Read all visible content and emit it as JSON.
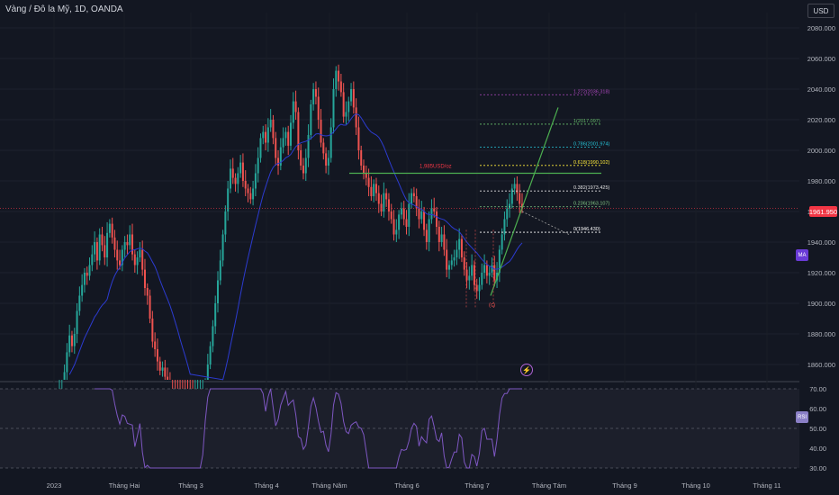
{
  "header": {
    "symbol_title": "Vàng / Đô la Mỹ, 1D, OANDA",
    "currency": "USD"
  },
  "badges": {
    "last_price": "1961.950",
    "ma": "MA",
    "rsi": "RSI"
  },
  "icons": {
    "flash": "lightning-icon"
  },
  "colors": {
    "background": "#131722",
    "up": "#26a69a",
    "down": "#ef5350",
    "ma_line": "#2c3bd0",
    "rsi_line": "#7e57c2",
    "price_line": "#f23645",
    "trend_green": "#4caf50"
  },
  "chart_data": [
    {
      "type": "candlestick",
      "title": "Vàng / Đô la Mỹ, 1D, OANDA",
      "ylim": [
        1850,
        2090
      ],
      "y_ticks": [
        "2080.000",
        "2060.000",
        "2040.000",
        "2020.000",
        "2000.000",
        "1980.000",
        "1960.000",
        "1940.000",
        "1920.000",
        "1900.000",
        "1880.000",
        "1860.000"
      ],
      "x_ticks": [
        "2023",
        "Tháng Hai",
        "Tháng 3",
        "Tháng 4",
        "Tháng Năm",
        "Tháng 6",
        "Tháng 7",
        "Tháng Tám",
        "Tháng 9",
        "Tháng 10",
        "Tháng 11"
      ],
      "series_close": [
        1825,
        1840,
        1855,
        1868,
        1879,
        1872,
        1880,
        1895,
        1905,
        1912,
        1920,
        1918,
        1925,
        1932,
        1940,
        1928,
        1945,
        1938,
        1930,
        1946,
        1952,
        1943,
        1935,
        1928,
        1925,
        1935,
        1940,
        1938,
        1945,
        1932,
        1925,
        1930,
        1935,
        1922,
        1910,
        1905,
        1890,
        1875,
        1870,
        1862,
        1856,
        1858,
        1852,
        1848,
        1840,
        1836,
        1832,
        1828,
        1824,
        1820,
        1818,
        1815,
        1812,
        1810,
        1816,
        1820,
        1825,
        1832,
        1845,
        1860,
        1872,
        1885,
        1900,
        1915,
        1928,
        1945,
        1960,
        1975,
        1988,
        1982,
        1978,
        1985,
        1992,
        1980,
        1975,
        1972,
        1968,
        1975,
        1985,
        1995,
        2008,
        2012,
        2005,
        2015,
        2020,
        2008,
        1995,
        1990,
        2002,
        2008,
        2012,
        2003,
        2018,
        2032,
        2025,
        2000,
        1990,
        1985,
        1995,
        2010,
        2030,
        2040,
        2035,
        2020,
        2005,
        1998,
        1990,
        1995,
        2015,
        2040,
        2052,
        2045,
        2038,
        2022,
        2025,
        2032,
        2040,
        2028,
        2015,
        2000,
        1990,
        1985,
        1982,
        1976,
        1970,
        1978,
        1972,
        1965,
        1960,
        1972,
        1968,
        1960,
        1955,
        1945,
        1948,
        1958,
        1962,
        1955,
        1950,
        1965,
        1972,
        1970,
        1962,
        1955,
        1960,
        1948,
        1940,
        1955,
        1962,
        1960,
        1950,
        1940,
        1945,
        1935,
        1922,
        1925,
        1928,
        1930,
        1935,
        1942,
        1930,
        1922,
        1915,
        1918,
        1925,
        1912,
        1908,
        1912,
        1920,
        1925,
        1918,
        1920,
        1925,
        1915,
        1920,
        1935,
        1945,
        1955,
        1962,
        1965,
        1975,
        1978,
        1972,
        1965,
        1961.95
      ],
      "trendline_label": "1,985USD/oz",
      "pattern_label": "(c)",
      "fibonacci": [
        {
          "label": "1.272(2036.318)",
          "level": 2036.318
        },
        {
          "label": "1(2017.097)",
          "level": 2017.097
        },
        {
          "label": "0.786(2001.974)",
          "level": 2001.974
        },
        {
          "label": "0.618(1990.102)",
          "level": 1990.102
        },
        {
          "label": "0.382(1973.425)",
          "level": 1973.425
        },
        {
          "label": "0.236(1963.107)",
          "level": 1963.107
        },
        {
          "label": "0(1946.430)",
          "level": 1946.43
        }
      ],
      "last_price": 1961.95
    },
    {
      "type": "line",
      "name": "RSI",
      "ylim": [
        30,
        70
      ],
      "y_ticks": [
        "70.00",
        "60.00",
        "50.00",
        "40.00",
        "30.00"
      ]
    }
  ]
}
